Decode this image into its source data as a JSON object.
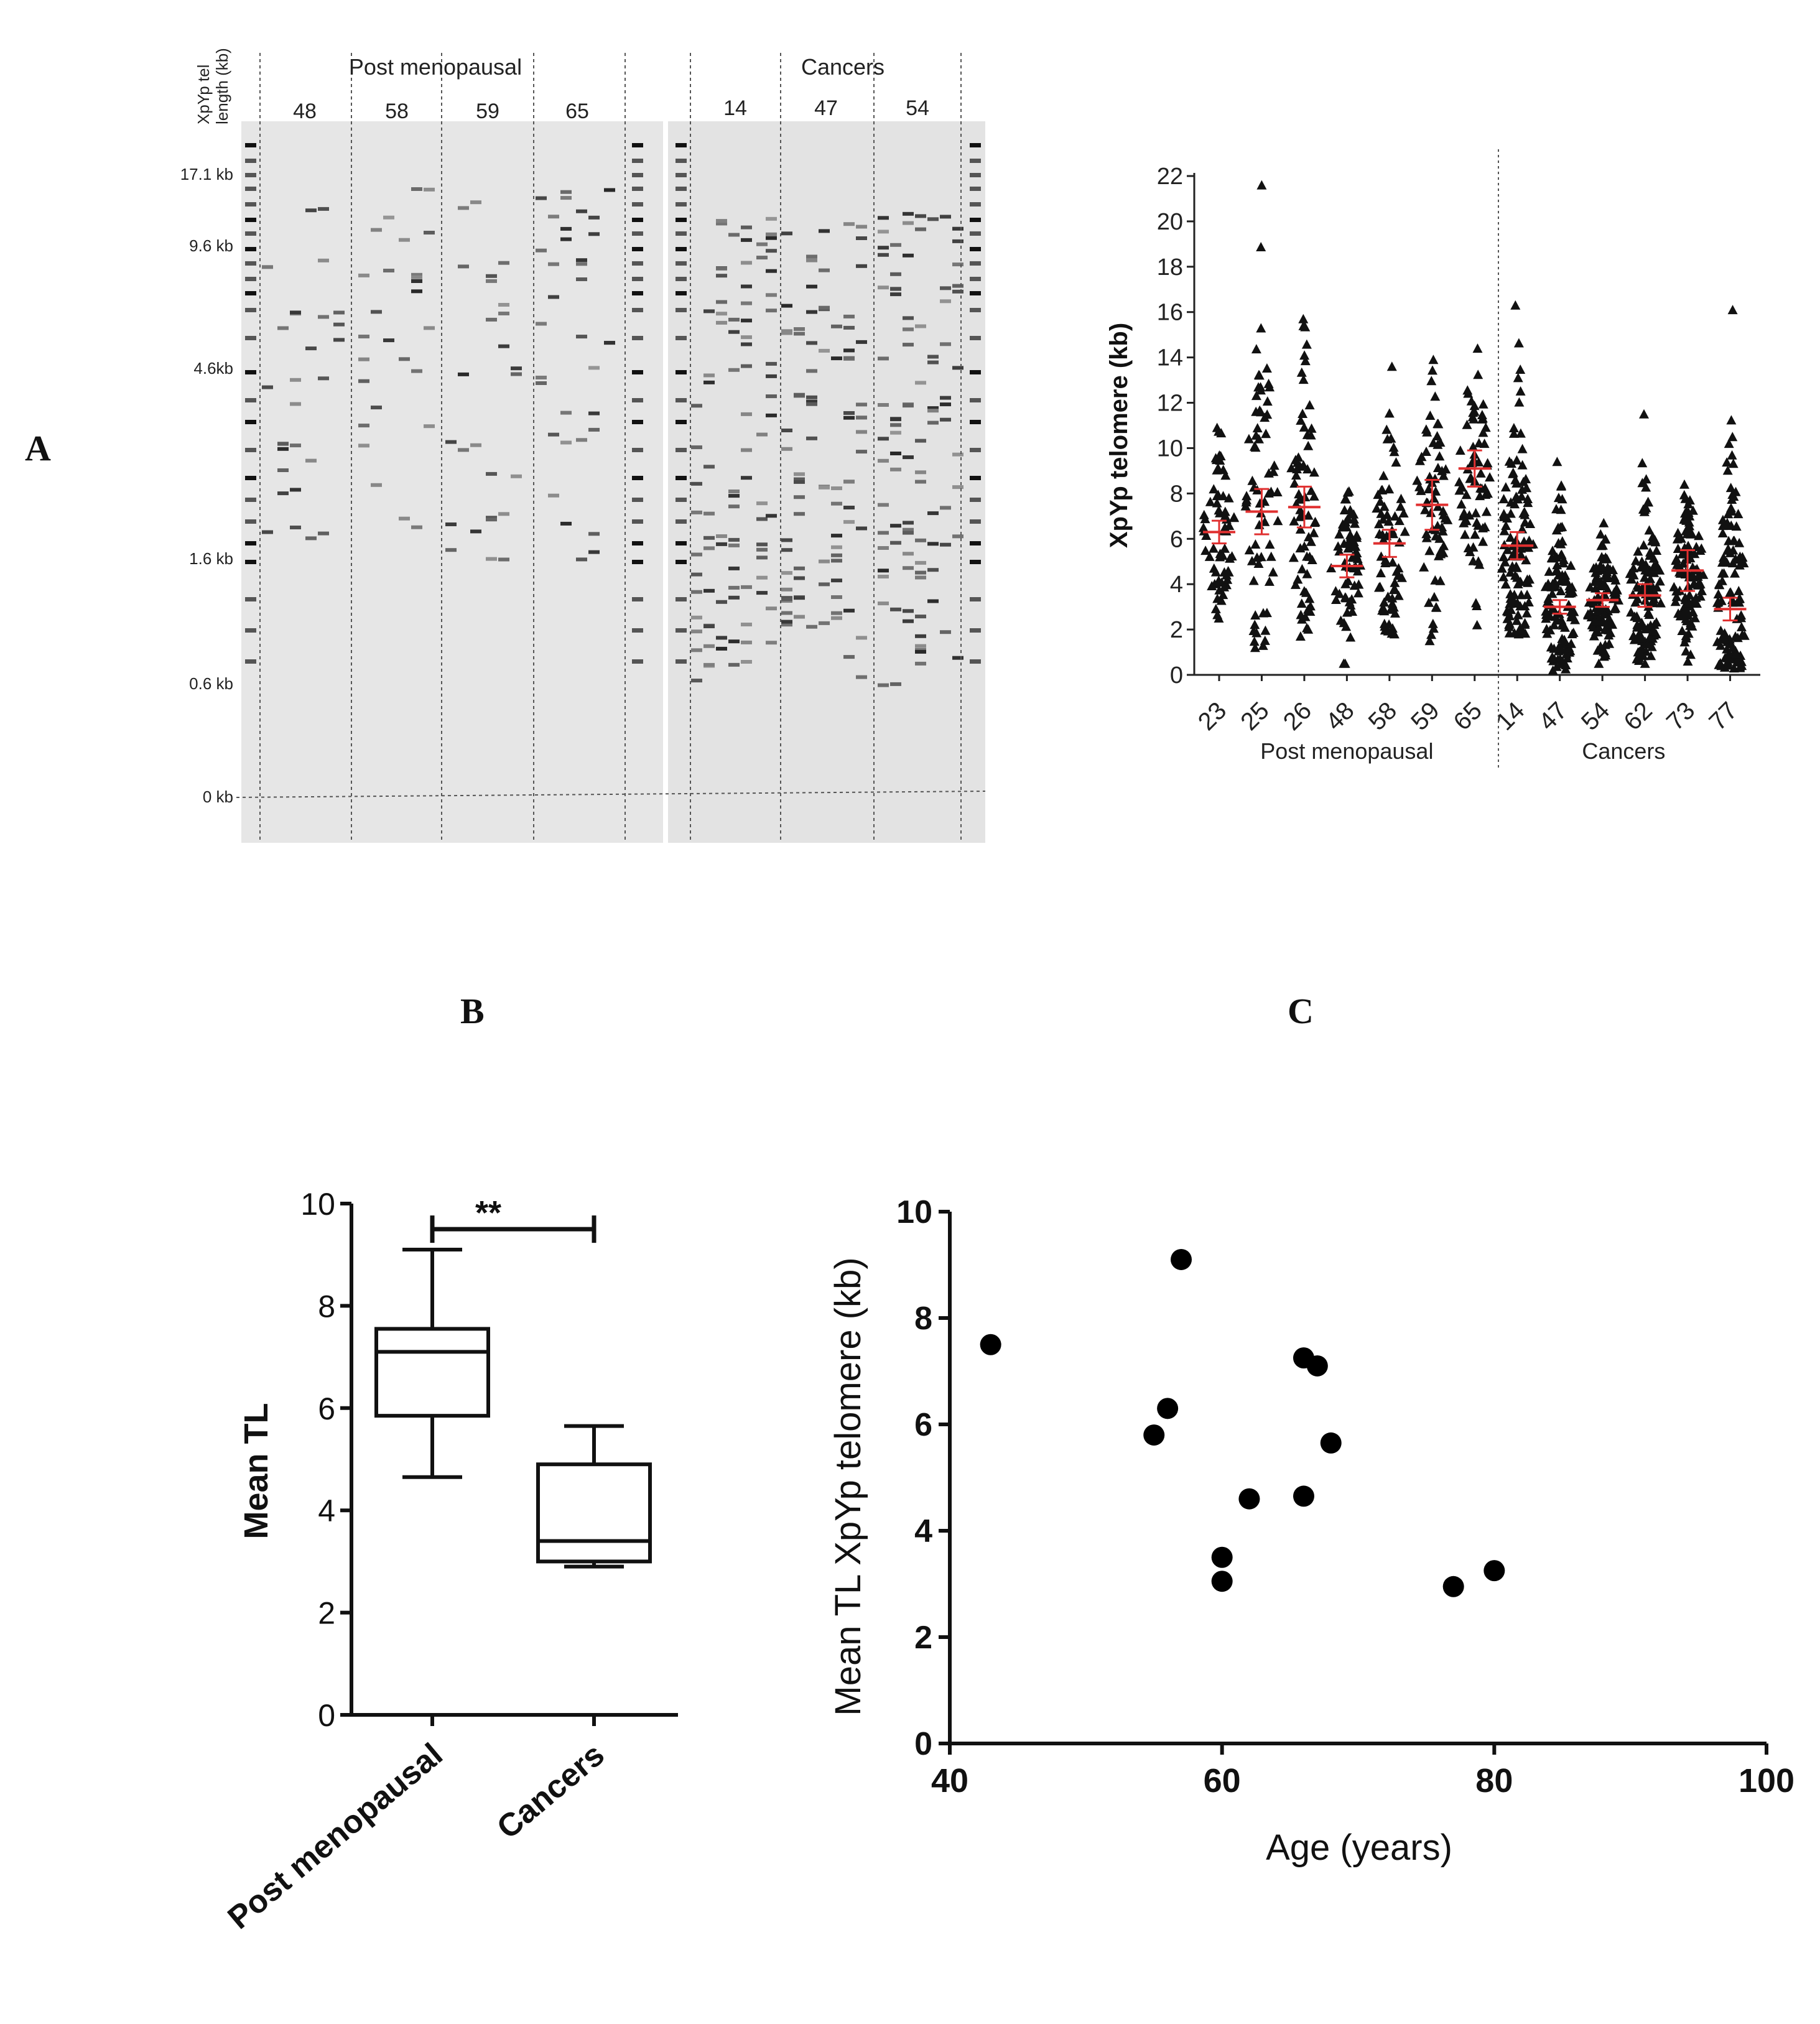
{
  "panel_labels": {
    "a": "A",
    "b": "B",
    "c": "C"
  },
  "gel": {
    "y_axis_label_line1": "XpYp tel",
    "y_axis_label_line2": "length (kb)",
    "group_left": "Post menopausal",
    "group_right": "Cancers",
    "lanes_left": [
      "48",
      "58",
      "59",
      "65"
    ],
    "lanes_right": [
      "14",
      "47",
      "54"
    ],
    "size_markers": [
      "17.1 kb",
      "9.6 kb",
      "4.6kb",
      "1.6 kb",
      "0.6 kb",
      "0 kb"
    ]
  },
  "chart_data": [
    {
      "id": "scatter-dot-plot",
      "type": "scatter",
      "ylabel": "XpYp telomere (kb)",
      "ylim": [
        0,
        22
      ],
      "yticks": [
        "0",
        "2",
        "4",
        "6",
        "8",
        "10",
        "12",
        "14",
        "16",
        "18",
        "20",
        "22"
      ],
      "categories": [
        "23",
        "25",
        "26",
        "48",
        "58",
        "59",
        "65",
        "14",
        "47",
        "54",
        "62",
        "73",
        "77"
      ],
      "groups": [
        {
          "name": "Post menopausal",
          "categories": [
            "23",
            "25",
            "26",
            "48",
            "58",
            "59",
            "65"
          ]
        },
        {
          "name": "Cancers",
          "categories": [
            "14",
            "47",
            "54",
            "62",
            "73",
            "77"
          ]
        }
      ],
      "means": [
        6.3,
        7.2,
        7.4,
        4.8,
        5.8,
        7.5,
        9.1,
        5.7,
        3.0,
        3.3,
        3.5,
        4.6,
        2.9
      ],
      "ci_half": [
        0.5,
        1.0,
        0.9,
        0.5,
        0.6,
        1.1,
        0.8,
        0.6,
        0.3,
        0.3,
        0.5,
        0.9,
        0.5
      ],
      "max_values": [
        10.9,
        21.6,
        15.7,
        8.1,
        13.6,
        13.9,
        14.4,
        16.3,
        9.4,
        6.7,
        11.5,
        8.4,
        16.1
      ],
      "min_values": [
        2.5,
        1.2,
        1.7,
        0.5,
        1.8,
        1.5,
        2.2,
        1.8,
        0.2,
        0.5,
        0.5,
        0.6,
        0.3
      ],
      "marker": "triangle",
      "mean_color": "#e03030"
    },
    {
      "id": "box-plot",
      "type": "box",
      "ylabel": "Mean TL",
      "ylim": [
        0,
        10
      ],
      "yticks": [
        "0",
        "2",
        "4",
        "6",
        "8",
        "10"
      ],
      "categories": [
        "Post menopausal",
        "Cancers"
      ],
      "boxes": [
        {
          "name": "Post menopausal",
          "min": 4.65,
          "q1": 5.85,
          "median": 7.1,
          "q3": 7.55,
          "max": 9.1
        },
        {
          "name": "Cancers",
          "min": 2.9,
          "q1": 3.0,
          "median": 3.4,
          "q3": 4.9,
          "max": 5.65
        }
      ],
      "significance": "**",
      "significance_bracket_y": 9.5
    },
    {
      "id": "age-scatter",
      "type": "scatter",
      "xlabel": "Age (years)",
      "ylabel": "Mean TL XpYp telomere (kb)",
      "xlim": [
        40,
        100
      ],
      "ylim": [
        0,
        10
      ],
      "xticks": [
        "40",
        "60",
        "80",
        "100"
      ],
      "yticks": [
        "0",
        "2",
        "4",
        "6",
        "8",
        "10"
      ],
      "points": [
        {
          "x": 43,
          "y": 7.5
        },
        {
          "x": 55,
          "y": 5.8
        },
        {
          "x": 56,
          "y": 6.3
        },
        {
          "x": 57,
          "y": 9.1
        },
        {
          "x": 60,
          "y": 3.5
        },
        {
          "x": 60,
          "y": 3.05
        },
        {
          "x": 62,
          "y": 4.6
        },
        {
          "x": 66,
          "y": 7.25
        },
        {
          "x": 66,
          "y": 4.65
        },
        {
          "x": 67,
          "y": 7.1
        },
        {
          "x": 68,
          "y": 5.65
        },
        {
          "x": 77,
          "y": 2.95
        },
        {
          "x": 80,
          "y": 3.25
        }
      ]
    }
  ]
}
